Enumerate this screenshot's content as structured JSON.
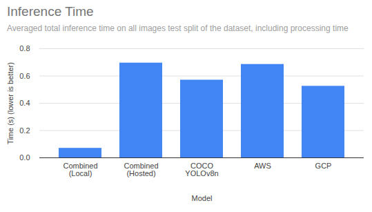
{
  "chart_data": {
    "type": "bar",
    "title": "Inference Time",
    "subtitle": "Averaged total inference time on all images test split of the dataset, including processing time",
    "x_label": "Model",
    "y_label": "Time (s) (lower is better)",
    "categories": [
      "Combined\n(Local)",
      "Combined\n(Hosted)",
      "COCO\nYOLOv8n",
      "AWS",
      "GCP"
    ],
    "values": [
      0.07,
      0.695,
      0.57,
      0.685,
      0.525
    ],
    "color": "#4285f4",
    "ylim": [
      0,
      0.8
    ],
    "yticks": [
      0,
      0.2,
      0.4,
      0.6,
      0.8
    ],
    "grid": true
  }
}
